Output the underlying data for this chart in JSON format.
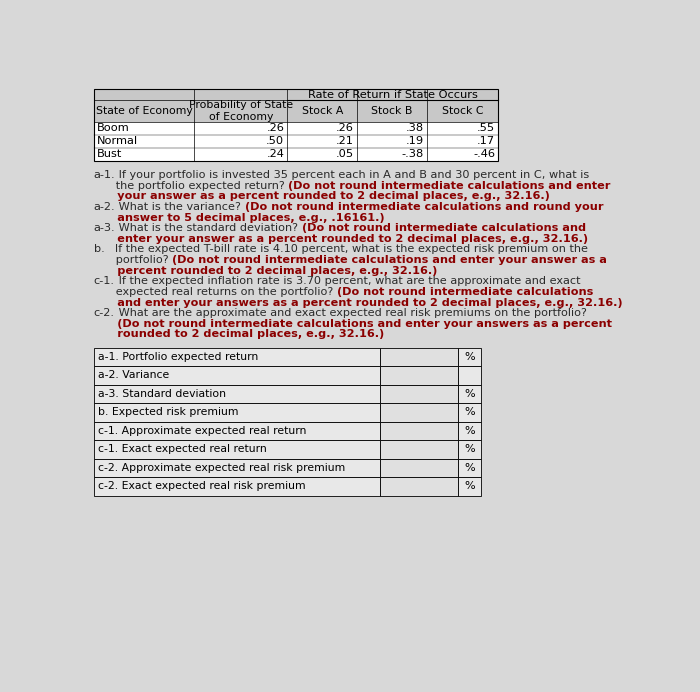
{
  "bg_color": "#d8d8d8",
  "table1_rows": [
    [
      "Boom",
      ".26",
      ".26",
      ".38",
      ".55"
    ],
    [
      "Normal",
      ".50",
      ".21",
      ".19",
      ".17"
    ],
    [
      "Bust",
      ".24",
      ".05",
      "-.38",
      "-.46"
    ]
  ],
  "answer_rows": [
    {
      "label": "a-1. Portfolio expected return",
      "has_percent": true
    },
    {
      "label": "a-2. Variance",
      "has_percent": false
    },
    {
      "label": "a-3. Standard deviation",
      "has_percent": true
    },
    {
      "label": "b. Expected risk premium",
      "has_percent": true
    },
    {
      "label": "c-1. Approximate expected real return",
      "has_percent": true
    },
    {
      "label": "c-1. Exact expected real return",
      "has_percent": true
    },
    {
      "label": "c-2. Approximate expected real risk premium",
      "has_percent": true
    },
    {
      "label": "c-2. Exact expected real risk premium",
      "has_percent": true
    }
  ],
  "q_lines": [
    [
      [
        "n",
        "a-1."
      ],
      [
        "n",
        " If your portfolio is invested 35 percent each in A and B and 30 percent in C, what is"
      ]
    ],
    [
      [
        "n",
        "      the portfolio expected return? "
      ],
      [
        "b",
        "(Do not round intermediate calculations and enter"
      ]
    ],
    [
      [
        "b",
        "      your answer as a percent rounded to 2 decimal places, e.g., 32.16.)"
      ]
    ],
    [
      [
        "n",
        "a-2."
      ],
      [
        "n",
        " What is the variance? "
      ],
      [
        "b",
        "(Do not round intermediate calculations and round your"
      ]
    ],
    [
      [
        "b",
        "      answer to 5 decimal places, e.g., .16161.)"
      ]
    ],
    [
      [
        "n",
        "a-3."
      ],
      [
        "n",
        " What is the standard deviation? "
      ],
      [
        "b",
        "(Do not round intermediate calculations and"
      ]
    ],
    [
      [
        "b",
        "      enter your answer as a percent rounded to 2 decimal places, e.g., 32.16.)"
      ]
    ],
    [
      [
        "n",
        "b."
      ],
      [
        "n",
        "   If the expected T-bill rate is 4.10 percent, what is the expected risk premium on the"
      ]
    ],
    [
      [
        "n",
        "      portfolio? "
      ],
      [
        "b",
        "(Do not round intermediate calculations and enter your answer as a"
      ]
    ],
    [
      [
        "b",
        "      percent rounded to 2 decimal places, e.g., 32.16.)"
      ]
    ],
    [
      [
        "n",
        "c-1."
      ],
      [
        "n",
        " If the expected inflation rate is 3.70 percent, what are the approximate and exact"
      ]
    ],
    [
      [
        "n",
        "      expected real returns on the portfolio? "
      ],
      [
        "b",
        "(Do not round intermediate calculations"
      ]
    ],
    [
      [
        "b",
        "      and enter your answers as a percent rounded to 2 decimal places, e.g., 32.16.)"
      ]
    ],
    [
      [
        "n",
        "c-2."
      ],
      [
        "n",
        " What are the approximate and exact expected real risk premiums on the portfolio?"
      ]
    ],
    [
      [
        "b",
        "      (Do not round intermediate calculations and enter your answers as a percent"
      ]
    ],
    [
      [
        "b",
        "      rounded to 2 decimal places, e.g., 32.16.)"
      ]
    ]
  ]
}
